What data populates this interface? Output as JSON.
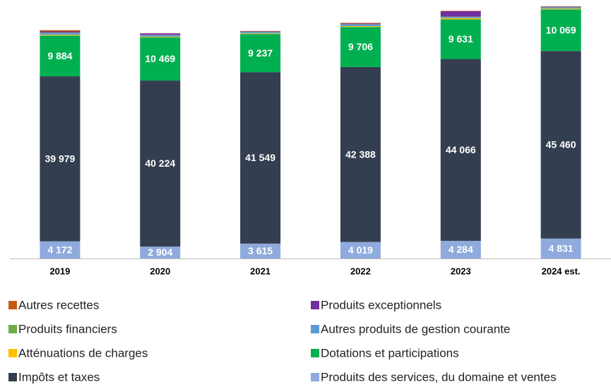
{
  "chart_data": {
    "type": "bar",
    "stacked": true,
    "categories": [
      "2019",
      "2020",
      "2021",
      "2022",
      "2023",
      "2024 est."
    ],
    "series": [
      {
        "name": "Produits des services, du domaine et ventes",
        "color": "#8faadc",
        "values": [
          4172,
          2904,
          3615,
          4019,
          4284,
          4831
        ],
        "value_labels": [
          "4 172",
          "2 904",
          "3 615",
          "4 019",
          "4 284",
          "4 831"
        ]
      },
      {
        "name": "Impôts et taxes",
        "color": "#333f50",
        "values": [
          39979,
          40224,
          41549,
          42388,
          44066,
          45460
        ],
        "value_labels": [
          "39 979",
          "40 224",
          "41 549",
          "42 388",
          "44 066",
          "45 460"
        ]
      },
      {
        "name": "Dotations et participations",
        "color": "#00b050",
        "values": [
          9884,
          10469,
          9237,
          9706,
          9631,
          10069
        ],
        "value_labels": [
          "9 884",
          "10 469",
          "9 237",
          "9 706",
          "9 631",
          "10 069"
        ]
      },
      {
        "name": "Atténuations de charges",
        "color": "#ffc000",
        "values": [
          200,
          150,
          150,
          200,
          300,
          200
        ]
      },
      {
        "name": "Autres produits de gestion courante",
        "color": "#5b9bd5",
        "values": [
          400,
          400,
          350,
          400,
          300,
          300
        ]
      },
      {
        "name": "Produits financiers",
        "color": "#70ad47",
        "values": [
          100,
          50,
          50,
          50,
          50,
          50
        ]
      },
      {
        "name": "Produits exceptionnels",
        "color": "#7030a0",
        "values": [
          300,
          350,
          100,
          200,
          1300,
          100
        ]
      },
      {
        "name": "Autres recettes",
        "color": "#c55a11",
        "values": [
          300,
          50,
          100,
          150,
          100,
          100
        ]
      }
    ]
  }
}
